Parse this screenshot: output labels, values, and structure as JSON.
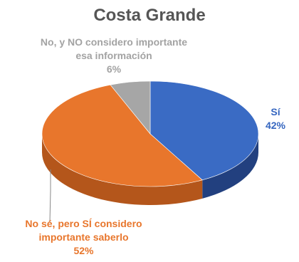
{
  "chart_data": {
    "type": "pie",
    "title": "Costa Grande",
    "style": "3d",
    "slices": [
      {
        "label": "Sí",
        "value": 42,
        "value_label": "42%",
        "color": "#3a6bc4",
        "side_color": "#22407f"
      },
      {
        "label": "No sé, pero SÍ considero importante saberlo",
        "value": 52,
        "value_label": "52%",
        "color": "#e8762c",
        "side_color": "#b4561b"
      },
      {
        "label": "No, y NO considero importante esa información",
        "value": 6,
        "value_label": "6%",
        "color": "#a6a6a6",
        "side_color": "#7a7a7a"
      }
    ],
    "labels_display": {
      "blue": [
        "Sí",
        "42%"
      ],
      "orange": [
        "No sé, pero SÍ considero",
        "importante saberlo",
        "52%"
      ],
      "gray": [
        "No, y NO considero importante",
        "esa información",
        "6%"
      ]
    }
  }
}
